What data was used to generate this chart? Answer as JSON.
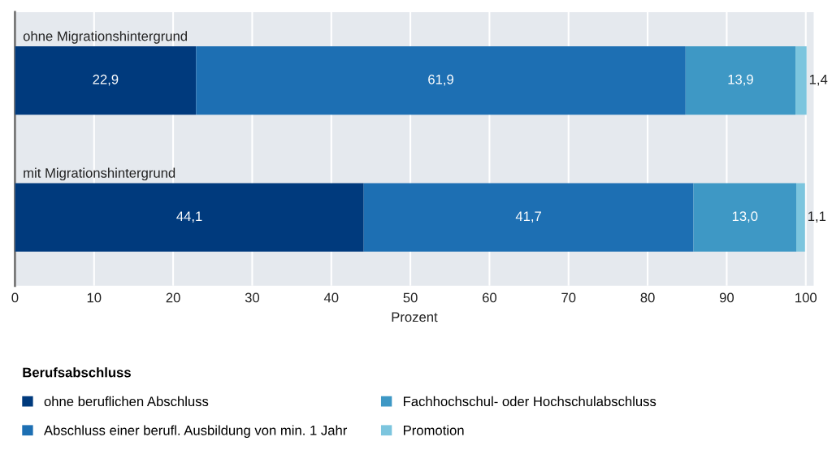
{
  "chart_data": {
    "type": "bar",
    "orientation": "horizontal",
    "stacked": true,
    "categories": [
      "ohne Migrationshintergrund",
      "mit Migrationshintergrund"
    ],
    "series": [
      {
        "name": "ohne beruflichen Abschluss",
        "color": "#003a7d",
        "values": [
          22.9,
          44.1
        ],
        "value_labels": [
          "22,9",
          "44,1"
        ]
      },
      {
        "name": "Abschluss einer berufl. Ausbildung von min. 1 Jahr",
        "color": "#1d6fb3",
        "values": [
          61.9,
          41.7
        ],
        "value_labels": [
          "61,9",
          "41,7"
        ]
      },
      {
        "name": "Fachhochschul- oder Hochschulabschluss",
        "color": "#3e98c5",
        "values": [
          13.9,
          13.0
        ],
        "value_labels": [
          "13,9",
          "13,0"
        ]
      },
      {
        "name": "Promotion",
        "color": "#7cc5de",
        "values": [
          1.4,
          1.1
        ],
        "value_labels": [
          "1,4",
          "1,1"
        ]
      }
    ],
    "xlabel": "Prozent",
    "legend_title": "Berufsabschluss",
    "xlim": [
      0,
      101
    ],
    "xticks": [
      0,
      10,
      20,
      30,
      40,
      50,
      60,
      70,
      80,
      90,
      100
    ],
    "grid": "x",
    "legend": "bottom"
  }
}
